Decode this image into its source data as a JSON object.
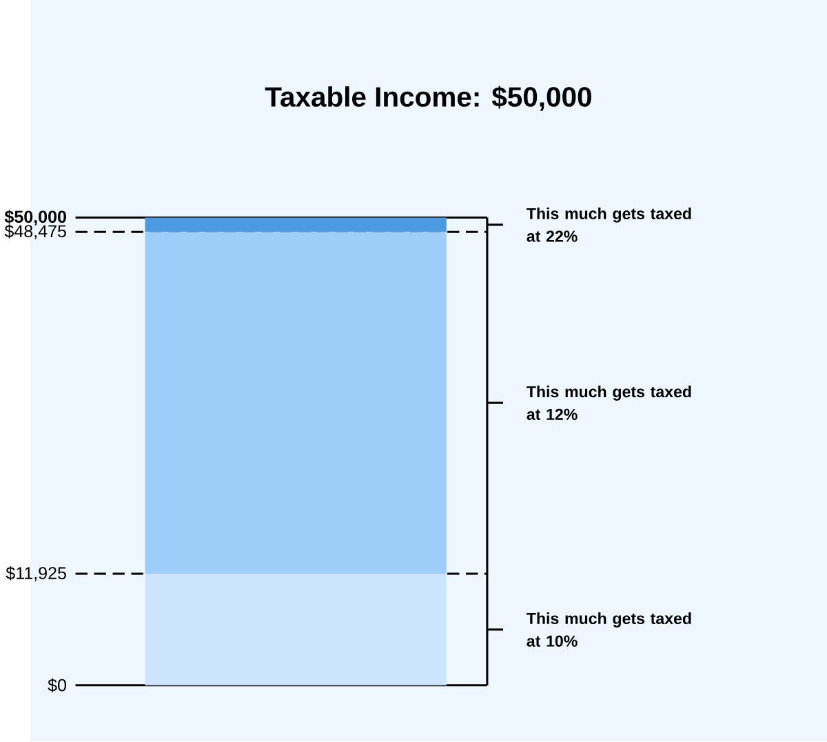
{
  "chart_data": {
    "type": "bar",
    "title": "Taxable Income: $50,000",
    "categories": [
      null
    ],
    "stacked": true,
    "series": [
      {
        "color": "#cce4fd",
        "values": [
          11925
        ]
      },
      {
        "color": "#9dcdf9",
        "values": [
          36550
        ]
      },
      {
        "color": "#4c9be2",
        "values": [
          1525
        ]
      }
    ],
    "ylim": [
      0,
      50000
    ],
    "yticks": [
      {
        "value": 0,
        "label": "$0"
      },
      {
        "value": 11925,
        "label": "$11,925"
      },
      {
        "value": 48475,
        "label": "$48,475"
      },
      {
        "value": 50000,
        "label": "**$50,000**"
      }
    ],
    "ref_lines": [
      {
        "axis": "y",
        "value": 0,
        "color": "#000000",
        "line_style": "solid"
      },
      {
        "axis": "y",
        "value": 11925,
        "color": "#000000",
        "line_style": "dashed"
      },
      {
        "axis": "y",
        "value": 48475,
        "color": "#000000",
        "line_style": "dashed"
      },
      {
        "axis": "y",
        "value": 50000,
        "color": "#000000",
        "line_style": "solid"
      }
    ],
    "annotations": [
      "This much gets taxed at 10%",
      "This much gets taxed at 12%",
      "This much gets taxed at 22%"
    ]
  }
}
